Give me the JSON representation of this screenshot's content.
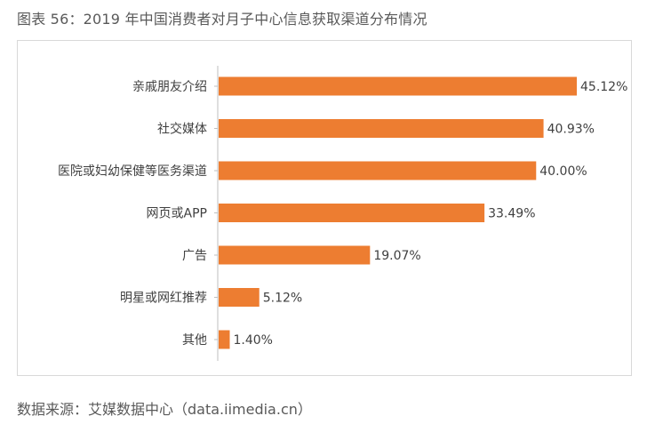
{
  "figure_title": "图表 56：2019 年中国消费者对月子中心信息获取渠道分布情况",
  "source": "数据来源：艾媒数据中心（data.iimedia.cn）",
  "colors": {
    "bar": "#ED7D31",
    "axis": "#bfbfbf",
    "frame": "#d9d9d9"
  },
  "chart_data": {
    "type": "bar",
    "orientation": "horizontal",
    "title": "",
    "xlabel": "",
    "ylabel": "",
    "xlim": [
      0,
      45.12
    ],
    "grid": false,
    "legend": "none",
    "value_suffix": "%",
    "categories": [
      "亲戚朋友介绍",
      "社交媒体",
      "医院或妇幼保健等医务渠道",
      "网页或APP",
      "广告",
      "明星或网红推荐",
      "其他"
    ],
    "values": [
      45.12,
      40.93,
      40.0,
      33.49,
      19.07,
      5.12,
      1.4
    ],
    "value_labels": [
      "45.12%",
      "40.93%",
      "40.00%",
      "33.49%",
      "19.07%",
      "5.12%",
      "1.40%"
    ]
  }
}
